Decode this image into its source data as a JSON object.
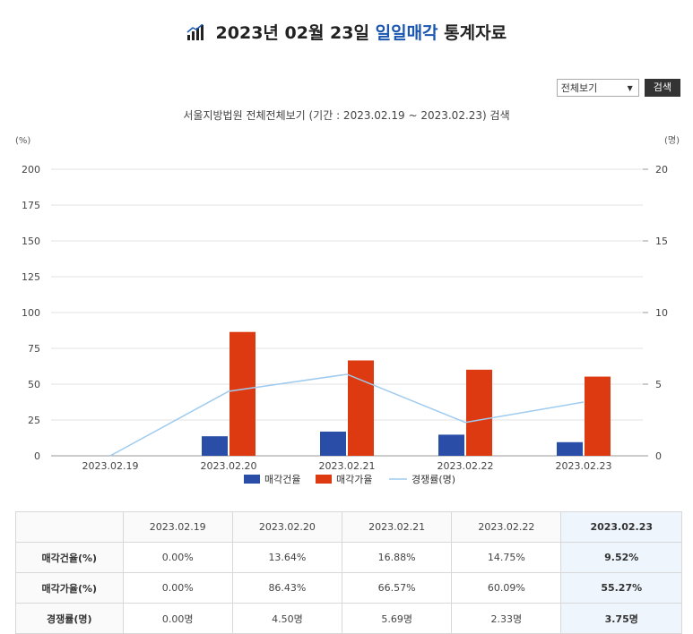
{
  "page": {
    "title_prefix": "2023년 02월 23일",
    "title_highlight": "일일매각",
    "title_suffix": "통계자료",
    "title_icon": "bar-chart-icon"
  },
  "toolbar": {
    "select_value": "전체보기",
    "search_label": "검색"
  },
  "subtitle": "서울지방법원 전체전체보기 (기간 : 2023.02.19 ~ 2023.02.23) 검색",
  "chart_data": {
    "type": "bar",
    "categories": [
      "2023.02.19",
      "2023.02.20",
      "2023.02.21",
      "2023.02.22",
      "2023.02.23"
    ],
    "series": [
      {
        "name": "매각건율",
        "type": "bar",
        "axis": "left",
        "color": "#2a4ea7",
        "values": [
          0,
          13.64,
          16.88,
          14.75,
          9.52
        ]
      },
      {
        "name": "매각가율",
        "type": "bar",
        "axis": "left",
        "color": "#dd3a12",
        "values": [
          0,
          86.43,
          66.57,
          60.09,
          55.27
        ]
      },
      {
        "name": "경쟁률(명)",
        "type": "line",
        "axis": "right",
        "color": "#9ecbef",
        "values": [
          0,
          4.5,
          5.69,
          2.33,
          3.75
        ]
      }
    ],
    "ylabel": "(%)",
    "y2label": "(명)",
    "ylim": [
      0,
      200
    ],
    "y2lim": [
      0,
      20
    ],
    "yticks": [
      "0",
      "25",
      "50",
      "75",
      "100",
      "125",
      "150",
      "175",
      "200"
    ],
    "y2ticks": [
      "0",
      "5",
      "10",
      "15",
      "20"
    ],
    "grid": true,
    "legend_position": "bottom-center"
  },
  "table": {
    "headers": [
      "",
      "2023.02.19",
      "2023.02.20",
      "2023.02.21",
      "2023.02.22",
      "2023.02.23"
    ],
    "rows": [
      {
        "label": "매각건율(%)",
        "cells": [
          "0.00%",
          "13.64%",
          "16.88%",
          "14.75%",
          "9.52%"
        ]
      },
      {
        "label": "매각가율(%)",
        "cells": [
          "0.00%",
          "86.43%",
          "66.57%",
          "60.09%",
          "55.27%"
        ]
      },
      {
        "label": "경쟁률(명)",
        "cells": [
          "0.00명",
          "4.50명",
          "5.69명",
          "2.33명",
          "3.75명"
        ]
      }
    ]
  }
}
